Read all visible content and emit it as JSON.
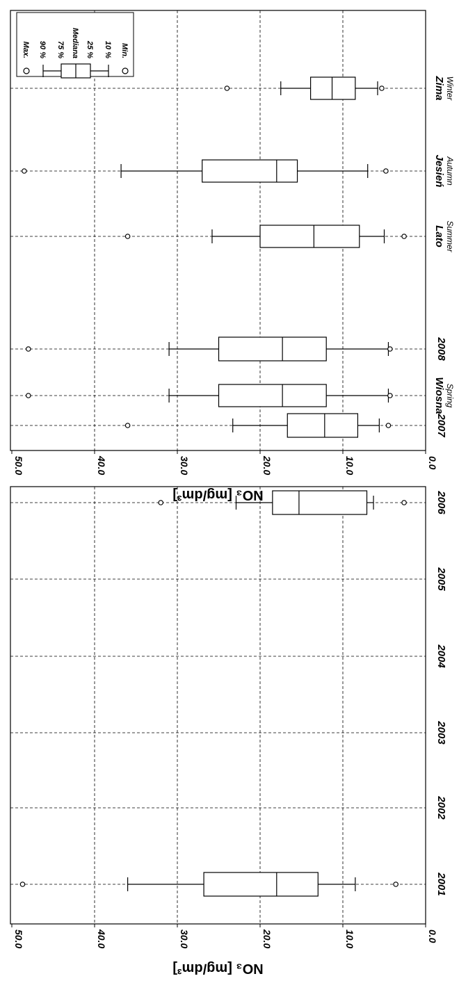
{
  "chart_data": [
    {
      "type": "boxplot",
      "ylabel": "NO₃ [mg/dm³]",
      "ylim": [
        0,
        50
      ],
      "yticks": [
        "0.0",
        "10.0",
        "20.0",
        "30.0",
        "40.0",
        "50.0"
      ],
      "grid": true,
      "legend": {
        "position": "top-right",
        "entries": [
          "Max.",
          "90 %",
          "75 %",
          "Mediana",
          "25 %",
          "10 %",
          "Min."
        ]
      },
      "categories": [
        {
          "label": "Wiosna",
          "sublabel": "Spring"
        },
        {
          "label": "Lato",
          "sublabel": "Summer"
        },
        {
          "label": "Jesień",
          "sublabel": "Autumn"
        },
        {
          "label": "Zima",
          "sublabel": "Winter"
        }
      ],
      "boxes": [
        {
          "min": 4.3,
          "p10": 4.5,
          "q1": 12.0,
          "median": 17.3,
          "q3": 25.0,
          "p90": 31.0,
          "max": 48.0
        },
        {
          "min": 2.6,
          "p10": 5.0,
          "q1": 8.0,
          "median": 13.5,
          "q3": 20.0,
          "p90": 25.8,
          "max": 36.0
        },
        {
          "min": 4.8,
          "p10": 7.0,
          "q1": 15.5,
          "median": 18.0,
          "q3": 27.0,
          "p90": 36.8,
          "max": 48.5
        },
        {
          "min": 5.3,
          "p10": 5.8,
          "q1": 8.5,
          "median": 11.3,
          "q3": 13.9,
          "p90": 17.5,
          "max": 24.0
        }
      ]
    },
    {
      "type": "boxplot",
      "ylabel": "NO₃ [mg/dm³]",
      "ylim": [
        0,
        50
      ],
      "yticks": [
        "0.0",
        "10.0",
        "20.0",
        "30.0",
        "40.0",
        "50.0"
      ],
      "grid": true,
      "categories": [
        {
          "label": "2001"
        },
        {
          "label": "2002"
        },
        {
          "label": "2003"
        },
        {
          "label": "2004"
        },
        {
          "label": "2005"
        },
        {
          "label": "2006"
        },
        {
          "label": "2007"
        },
        {
          "label": "2008"
        }
      ],
      "boxes": [
        {
          "min": 3.6,
          "p10": 8.5,
          "q1": 13.0,
          "median": 18.0,
          "q3": 26.8,
          "p90": 36.0,
          "max": 48.7
        },
        null,
        null,
        null,
        null,
        {
          "min": 2.6,
          "p10": 6.3,
          "q1": 7.1,
          "median": 15.3,
          "q3": 18.5,
          "p90": 22.9,
          "max": 32.0
        },
        {
          "min": 4.5,
          "p10": 5.6,
          "q1": 8.2,
          "median": 12.2,
          "q3": 16.7,
          "p90": 23.3,
          "max": 36.0
        },
        {
          "min": 4.3,
          "p10": 4.5,
          "q1": 12.0,
          "median": 17.3,
          "q3": 25.0,
          "p90": 31.0,
          "max": 48.0
        }
      ]
    }
  ]
}
